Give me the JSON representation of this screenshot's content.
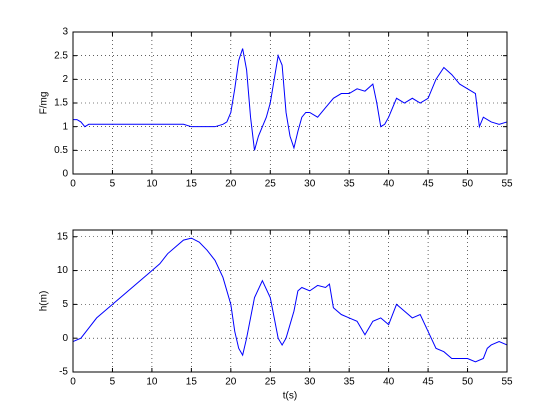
{
  "chart_data": [
    {
      "type": "line",
      "ylabel": "F/mg",
      "x": [
        0,
        0.5,
        1,
        1.5,
        2,
        2.5,
        3,
        4,
        5,
        6,
        7,
        8,
        9,
        10,
        11,
        12,
        13,
        14,
        15,
        16,
        17,
        18,
        19,
        19.5,
        20,
        20.5,
        21,
        21.5,
        22,
        22.5,
        23,
        23.5,
        24,
        24.5,
        25,
        25.5,
        26,
        26.5,
        27,
        27.5,
        28,
        28.5,
        29,
        29.5,
        30,
        31,
        32,
        33,
        34,
        35,
        36,
        37,
        38,
        38.5,
        39,
        39.5,
        40,
        41,
        42,
        43,
        44,
        45,
        46,
        47,
        48,
        49,
        50,
        51,
        51.5,
        52,
        53,
        54,
        55
      ],
      "series": [
        {
          "color": "#0000ff",
          "values": [
            1.15,
            1.15,
            1.1,
            1.0,
            1.05,
            1.05,
            1.05,
            1.05,
            1.05,
            1.05,
            1.05,
            1.05,
            1.05,
            1.05,
            1.05,
            1.05,
            1.05,
            1.05,
            1.0,
            1.0,
            1.0,
            1.0,
            1.05,
            1.1,
            1.3,
            1.8,
            2.4,
            2.65,
            2.2,
            1.2,
            0.5,
            0.8,
            1.0,
            1.2,
            1.5,
            2.0,
            2.5,
            2.3,
            1.3,
            0.8,
            0.55,
            0.9,
            1.2,
            1.3,
            1.3,
            1.2,
            1.4,
            1.6,
            1.7,
            1.7,
            1.8,
            1.75,
            1.9,
            1.5,
            1.0,
            1.05,
            1.2,
            1.6,
            1.5,
            1.6,
            1.5,
            1.6,
            2.0,
            2.25,
            2.1,
            1.9,
            1.8,
            1.7,
            1.0,
            1.2,
            1.1,
            1.05,
            1.1
          ]
        }
      ],
      "xlim": [
        0,
        55
      ],
      "xticks": [
        0,
        5,
        10,
        15,
        20,
        25,
        30,
        35,
        40,
        45,
        50,
        55
      ],
      "ylim": [
        0,
        3
      ],
      "yticks": [
        0,
        0.5,
        1,
        1.5,
        2,
        2.5,
        3
      ],
      "grid": true
    },
    {
      "type": "line",
      "xlabel": "t(s)",
      "ylabel": "h(m)",
      "x": [
        0,
        1,
        2,
        3,
        4,
        5,
        6,
        7,
        8,
        9,
        10,
        11,
        12,
        13,
        14,
        15,
        16,
        17,
        18,
        19,
        20,
        20.5,
        21,
        21.5,
        22,
        23,
        24,
        25,
        25.5,
        26,
        26.5,
        27,
        28,
        28.5,
        29,
        30,
        31,
        32,
        32.5,
        33,
        34,
        35,
        36,
        37,
        38,
        39,
        40,
        41,
        42,
        43,
        44,
        45,
        46,
        47,
        48,
        49,
        50,
        51,
        52,
        52.5,
        53,
        54,
        55
      ],
      "series": [
        {
          "color": "#0000ff",
          "values": [
            -0.5,
            0,
            1.5,
            3,
            4,
            5,
            6,
            7,
            8,
            9,
            10,
            11,
            12.5,
            13.5,
            14.5,
            14.8,
            14.2,
            13,
            11.5,
            9,
            5,
            1,
            -1.5,
            -2.5,
            0,
            6,
            8.5,
            6,
            3,
            0,
            -1,
            0,
            4,
            7,
            7.5,
            7,
            7.8,
            7.5,
            8,
            4.5,
            3.5,
            3,
            2.5,
            0.5,
            2.5,
            3,
            2,
            5,
            4,
            3,
            3.5,
            1,
            -1.5,
            -2,
            -3,
            -3,
            -3,
            -3.5,
            -3,
            -1.5,
            -1,
            -0.5,
            -1
          ]
        }
      ],
      "xlim": [
        0,
        55
      ],
      "xticks": [
        0,
        5,
        10,
        15,
        20,
        25,
        30,
        35,
        40,
        45,
        50,
        55
      ],
      "ylim": [
        -5,
        16
      ],
      "yticks": [
        -5,
        0,
        5,
        10,
        15
      ],
      "grid": true
    }
  ]
}
